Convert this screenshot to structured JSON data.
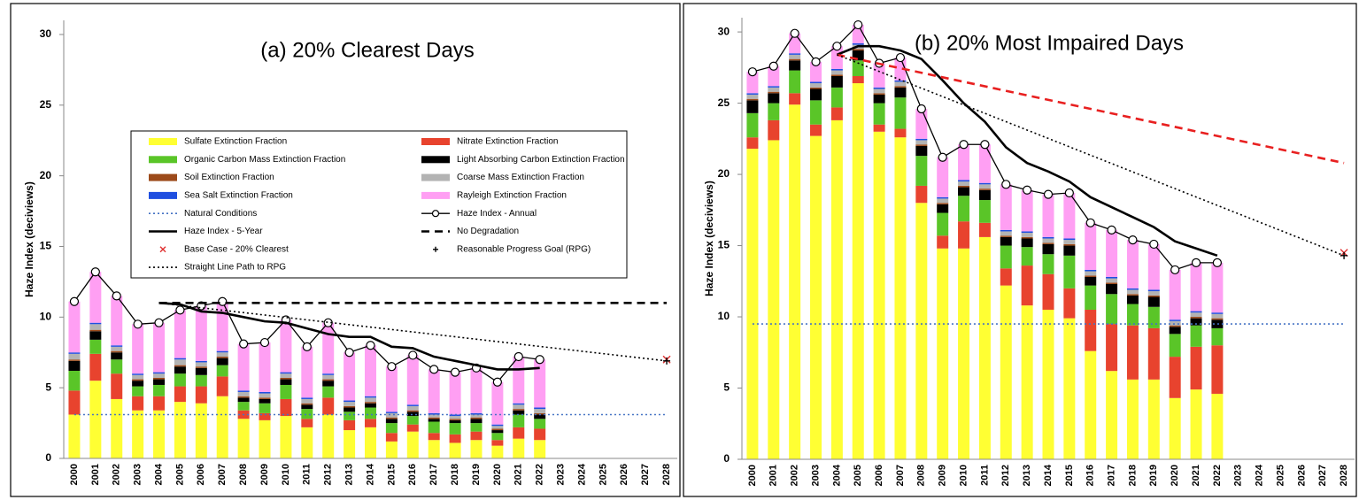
{
  "chart_data": [
    {
      "type": "stacked_bar",
      "title": "(a) 20% Clearest Days",
      "y_label": "Haze Index (deciviews)",
      "categories": [
        "2000",
        "2001",
        "2002",
        "2003",
        "2004",
        "2005",
        "2006",
        "2007",
        "2008",
        "2009",
        "2010",
        "2011",
        "2012",
        "2013",
        "2014",
        "2015",
        "2016",
        "2017",
        "2018",
        "2019",
        "2020",
        "2021",
        "2022",
        "2023",
        "2024",
        "2025",
        "2026",
        "2027",
        "2028"
      ],
      "ylim": [
        0,
        31
      ],
      "yticks": [
        0,
        5,
        10,
        15,
        20,
        25,
        30
      ],
      "legend": true,
      "series": [
        {
          "name": "Sulfate Extinction Fraction",
          "color": "#ffff33",
          "values": [
            3.1,
            5.5,
            4.2,
            3.4,
            3.4,
            4.0,
            3.9,
            4.4,
            2.8,
            2.7,
            3.0,
            2.2,
            3.1,
            2.0,
            2.2,
            1.2,
            1.9,
            1.3,
            1.1,
            1.3,
            0.9,
            1.4,
            1.3,
            null,
            null,
            null,
            null,
            null,
            null
          ]
        },
        {
          "name": "Nitrate Extinction Fraction",
          "color": "#e8432e",
          "values": [
            1.7,
            1.9,
            1.8,
            1.0,
            1.0,
            1.1,
            1.2,
            1.4,
            0.6,
            0.5,
            1.2,
            0.6,
            1.2,
            0.7,
            0.6,
            0.6,
            0.5,
            0.5,
            0.6,
            0.6,
            0.4,
            0.8,
            0.8,
            null,
            null,
            null,
            null,
            null,
            null
          ]
        },
        {
          "name": "Organic Carbon Mass Extinction Fraction",
          "color": "#5ac528",
          "values": [
            1.4,
            1.0,
            1.0,
            0.7,
            0.8,
            0.9,
            0.8,
            0.8,
            0.6,
            0.7,
            1.0,
            0.7,
            0.8,
            0.6,
            0.8,
            0.7,
            0.6,
            0.8,
            0.8,
            0.6,
            0.5,
            0.9,
            0.7,
            null,
            null,
            null,
            null,
            null,
            null
          ]
        },
        {
          "name": "Light Absorbing Carbon Extinction Fraction",
          "color": "#000000",
          "values": [
            0.7,
            0.6,
            0.5,
            0.4,
            0.4,
            0.5,
            0.5,
            0.5,
            0.3,
            0.3,
            0.4,
            0.3,
            0.4,
            0.3,
            0.3,
            0.3,
            0.3,
            0.2,
            0.2,
            0.3,
            0.2,
            0.3,
            0.3,
            null,
            null,
            null,
            null,
            null,
            null
          ]
        },
        {
          "name": "Soil Extinction Fraction",
          "color": "#9c4a1a",
          "values": [
            0.1,
            0.1,
            0.1,
            0.1,
            0.1,
            0.1,
            0.1,
            0.1,
            0.1,
            0.1,
            0.1,
            0.1,
            0.1,
            0.1,
            0.1,
            0.1,
            0.1,
            0.1,
            0.1,
            0.1,
            0.1,
            0.1,
            0.1,
            null,
            null,
            null,
            null,
            null,
            null
          ]
        },
        {
          "name": "Coarse Mass Extinction Fraction",
          "color": "#b3b3b3",
          "values": [
            0.4,
            0.4,
            0.3,
            0.3,
            0.3,
            0.4,
            0.3,
            0.3,
            0.3,
            0.3,
            0.3,
            0.3,
            0.3,
            0.3,
            0.3,
            0.3,
            0.3,
            0.2,
            0.2,
            0.2,
            0.2,
            0.3,
            0.3,
            null,
            null,
            null,
            null,
            null,
            null
          ]
        },
        {
          "name": "Sea Salt Extinction Fraction",
          "color": "#1f4fe0",
          "values": [
            0.1,
            0.1,
            0.1,
            0.1,
            0.1,
            0.1,
            0.1,
            0.1,
            0.1,
            0.1,
            0.1,
            0.1,
            0.1,
            0.1,
            0.1,
            0.1,
            0.1,
            0.1,
            0.1,
            0.1,
            0.1,
            0.1,
            0.1,
            null,
            null,
            null,
            null,
            null,
            null
          ]
        },
        {
          "name": "Rayleigh Extinction Fraction",
          "color": "#ff9ff3",
          "values": [
            3.6,
            3.6,
            3.5,
            3.5,
            3.5,
            3.4,
            3.9,
            3.5,
            3.3,
            3.5,
            3.7,
            3.6,
            3.6,
            3.4,
            3.6,
            3.2,
            3.5,
            3.1,
            3.0,
            3.2,
            3.0,
            3.3,
            3.4,
            null,
            null,
            null,
            null,
            null,
            null
          ]
        }
      ],
      "lines": [
        {
          "name": "Natural Conditions",
          "color": "#4472c4",
          "dash": "dotted",
          "x": [
            "2000",
            "2028"
          ],
          "values": [
            3.1,
            3.1
          ]
        },
        {
          "name": "Haze Index - Annual",
          "color": "#000000",
          "dash": "solid",
          "marker": "circle",
          "values": [
            11.1,
            13.2,
            11.5,
            9.5,
            9.6,
            10.5,
            10.8,
            11.1,
            8.1,
            8.2,
            9.8,
            7.9,
            9.6,
            7.5,
            8.0,
            6.5,
            7.3,
            6.3,
            6.1,
            6.4,
            5.4,
            7.2,
            7.0,
            null,
            null,
            null,
            null,
            null,
            null
          ]
        },
        {
          "name": "Haze Index - 5-Year",
          "color": "#000000",
          "dash": "solid",
          "thick": true,
          "values": [
            null,
            null,
            null,
            null,
            11.0,
            10.9,
            10.4,
            10.3,
            10.0,
            9.7,
            9.6,
            9.2,
            8.8,
            8.6,
            8.6,
            7.9,
            7.8,
            7.2,
            6.9,
            6.6,
            6.3,
            6.3,
            6.4,
            null,
            null,
            null,
            null,
            null,
            null
          ]
        },
        {
          "name": "No Degradation",
          "color": "#000000",
          "dash": "dashed",
          "thick": true,
          "x": [
            "2004",
            "2028"
          ],
          "values": [
            11.0,
            11.0
          ]
        },
        {
          "name": "Base Case - 20% Clearest",
          "color": "#e03030",
          "marker": "x",
          "x": [
            "2028"
          ],
          "values": [
            7.0
          ]
        },
        {
          "name": "Reasonable Progress Goal (RPG)",
          "color": "#000000",
          "marker": "+",
          "x": [
            "2028"
          ],
          "values": [
            6.9
          ]
        },
        {
          "name": "Straight Line Path to RPG",
          "color": "#000000",
          "dash": "dotted",
          "x": [
            "2004",
            "2028"
          ],
          "values": [
            11.0,
            6.9
          ]
        }
      ]
    },
    {
      "type": "stacked_bar",
      "title": "(b) 20% Most Impaired Days",
      "y_label": "Haze Index (deciviews)",
      "categories": [
        "2000",
        "2001",
        "2002",
        "2003",
        "2004",
        "2005",
        "2006",
        "2007",
        "2008",
        "2009",
        "2010",
        "2011",
        "2012",
        "2013",
        "2014",
        "2015",
        "2016",
        "2017",
        "2018",
        "2019",
        "2020",
        "2021",
        "2022",
        "2023",
        "2024",
        "2025",
        "2026",
        "2027",
        "2028"
      ],
      "ylim": [
        0,
        31
      ],
      "yticks": [
        0,
        5,
        10,
        15,
        20,
        25,
        30
      ],
      "legend": false,
      "series": [
        {
          "color": "#ffff33",
          "values": [
            21.8,
            22.4,
            24.9,
            22.7,
            23.8,
            26.4,
            23.0,
            22.6,
            18.0,
            14.8,
            14.8,
            15.6,
            12.2,
            10.8,
            10.5,
            9.9,
            7.6,
            6.2,
            5.6,
            5.6,
            4.3,
            4.9,
            4.6,
            null,
            null,
            null,
            null,
            null,
            null
          ]
        },
        {
          "color": "#e8432e",
          "values": [
            0.8,
            1.4,
            0.8,
            0.8,
            0.9,
            0.5,
            0.5,
            0.6,
            1.2,
            0.9,
            1.9,
            1.0,
            1.2,
            2.8,
            2.5,
            2.1,
            2.9,
            3.3,
            3.8,
            3.6,
            2.9,
            3.0,
            3.4,
            null,
            null,
            null,
            null,
            null,
            null
          ]
        },
        {
          "color": "#5ac528",
          "values": [
            1.7,
            1.2,
            1.6,
            1.7,
            1.4,
            1.1,
            1.5,
            2.2,
            2.1,
            1.6,
            1.8,
            1.6,
            1.6,
            1.3,
            1.4,
            2.3,
            1.7,
            2.1,
            1.5,
            1.5,
            1.6,
            1.5,
            1.2,
            null,
            null,
            null,
            null,
            null,
            null
          ]
        },
        {
          "color": "#000000",
          "values": [
            0.9,
            0.7,
            0.7,
            0.8,
            0.8,
            0.7,
            0.6,
            0.7,
            0.7,
            0.6,
            0.6,
            0.7,
            0.6,
            0.6,
            0.7,
            0.7,
            0.6,
            0.7,
            0.6,
            0.7,
            0.5,
            0.5,
            0.6,
            null,
            null,
            null,
            null,
            null,
            null
          ]
        },
        {
          "color": "#9c4a1a",
          "values": [
            0.1,
            0.1,
            0.1,
            0.1,
            0.1,
            0.1,
            0.1,
            0.1,
            0.1,
            0.1,
            0.1,
            0.1,
            0.1,
            0.1,
            0.1,
            0.1,
            0.1,
            0.1,
            0.1,
            0.1,
            0.1,
            0.1,
            0.1,
            null,
            null,
            null,
            null,
            null,
            null
          ]
        },
        {
          "color": "#b3b3b3",
          "values": [
            0.3,
            0.3,
            0.3,
            0.3,
            0.3,
            0.3,
            0.3,
            0.3,
            0.3,
            0.3,
            0.3,
            0.3,
            0.3,
            0.3,
            0.3,
            0.3,
            0.3,
            0.3,
            0.3,
            0.3,
            0.3,
            0.3,
            0.3,
            null,
            null,
            null,
            null,
            null,
            null
          ]
        },
        {
          "color": "#1f4fe0",
          "values": [
            0.1,
            0.1,
            0.1,
            0.1,
            0.1,
            0.1,
            0.1,
            0.1,
            0.1,
            0.1,
            0.1,
            0.1,
            0.1,
            0.1,
            0.1,
            0.1,
            0.1,
            0.1,
            0.1,
            0.1,
            0.1,
            0.1,
            0.1,
            null,
            null,
            null,
            null,
            null,
            null
          ]
        },
        {
          "color": "#ff9ff3",
          "values": [
            1.5,
            1.4,
            1.4,
            1.4,
            1.6,
            1.3,
            1.7,
            1.6,
            2.1,
            2.8,
            2.5,
            2.7,
            3.2,
            2.9,
            3.0,
            3.2,
            3.3,
            3.3,
            3.4,
            3.2,
            3.5,
            3.4,
            3.5,
            null,
            null,
            null,
            null,
            null,
            null
          ]
        }
      ],
      "lines": [
        {
          "color": "#4472c4",
          "dash": "dotted",
          "x": [
            "2000",
            "2028"
          ],
          "values": [
            9.5,
            9.5
          ]
        },
        {
          "color": "#000000",
          "dash": "solid",
          "marker": "circle",
          "values": [
            27.2,
            27.6,
            29.9,
            27.9,
            29.0,
            30.5,
            27.8,
            28.2,
            24.6,
            21.2,
            22.1,
            22.1,
            19.3,
            18.9,
            18.6,
            18.7,
            16.6,
            16.1,
            15.4,
            15.1,
            13.3,
            13.8,
            13.8,
            null,
            null,
            null,
            null,
            null,
            null
          ]
        },
        {
          "color": "#000000",
          "dash": "solid",
          "thick": true,
          "values": [
            null,
            null,
            null,
            null,
            28.4,
            29.0,
            29.0,
            28.7,
            28.1,
            26.6,
            25.0,
            23.7,
            21.9,
            20.8,
            20.2,
            19.5,
            18.4,
            17.7,
            17.0,
            16.3,
            15.3,
            14.8,
            14.3,
            null,
            null,
            null,
            null,
            null,
            null
          ]
        },
        {
          "color": "#e82020",
          "dash": "dashed",
          "thick": true,
          "x": [
            "2004",
            "2028"
          ],
          "values": [
            28.4,
            20.8
          ]
        },
        {
          "color": "#e03030",
          "marker": "x",
          "x": [
            "2028"
          ],
          "values": [
            14.5
          ]
        },
        {
          "color": "#000000",
          "marker": "+",
          "x": [
            "2028"
          ],
          "values": [
            14.3
          ]
        },
        {
          "color": "#000000",
          "dash": "dotted",
          "x": [
            "2004",
            "2028"
          ],
          "values": [
            28.4,
            14.3
          ]
        }
      ]
    }
  ]
}
